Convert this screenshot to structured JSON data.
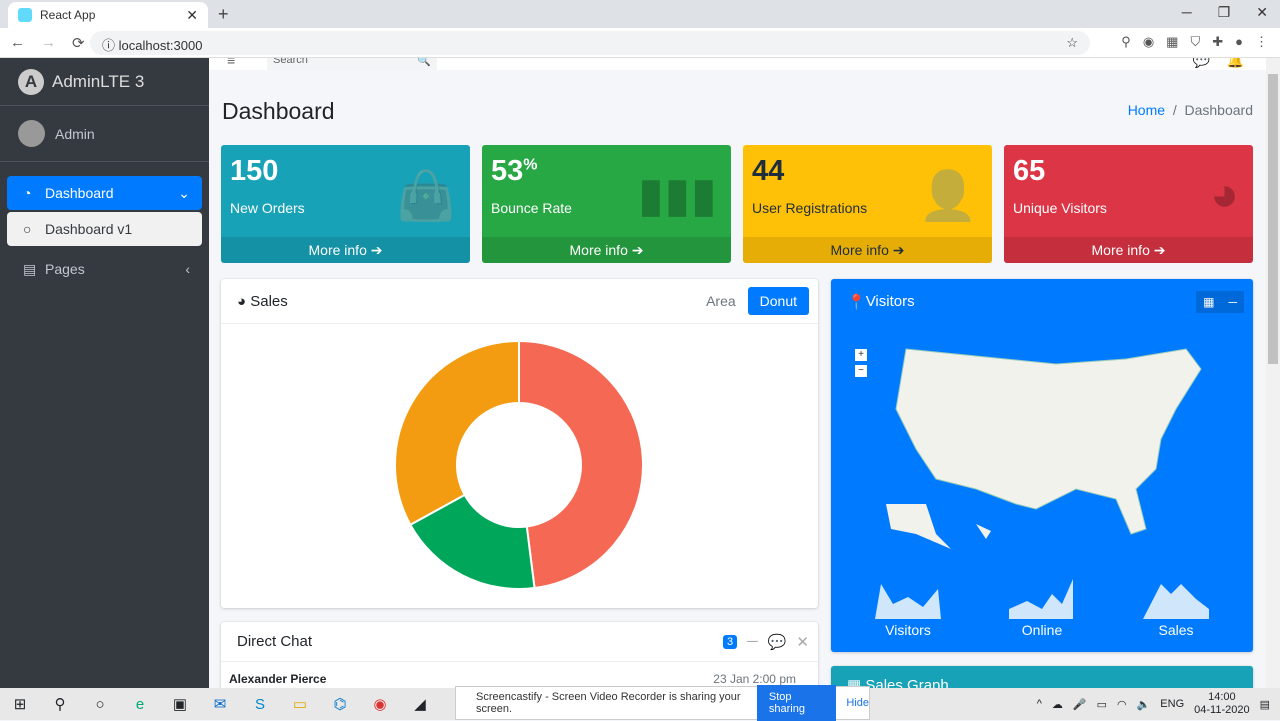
{
  "browser": {
    "tab_title": "React App",
    "url": "localhost:3000"
  },
  "sidebar": {
    "brand": "AdminLTE 3",
    "user": "Admin",
    "items": [
      {
        "label": "Dashboard"
      },
      {
        "label": "Dashboard v1"
      },
      {
        "label": "Pages"
      }
    ]
  },
  "topnav": {
    "search_placeholder": "Search"
  },
  "page": {
    "title": "Dashboard",
    "breadcrumb": [
      "Home",
      "Dashboard"
    ]
  },
  "boxes": [
    {
      "value": "150",
      "label": "New Orders",
      "more": "More info",
      "color": "#17a2b8"
    },
    {
      "value": "53",
      "suffix": "%",
      "label": "Bounce Rate",
      "more": "More info",
      "color": "#28a745"
    },
    {
      "value": "44",
      "label": "User Registrations",
      "more": "More info",
      "color": "#ffc107"
    },
    {
      "value": "65",
      "label": "Unique Visitors",
      "more": "More info",
      "color": "#dc3545"
    }
  ],
  "sales": {
    "title": "Sales",
    "tabs": [
      "Area",
      "Donut"
    ],
    "active_tab": "Donut",
    "donut_percent": [
      48,
      19,
      33
    ],
    "colors": [
      "#f56954",
      "#00a65a",
      "#f39c12"
    ]
  },
  "visitors": {
    "title": "Visitors",
    "sparklines": [
      "Visitors",
      "Online",
      "Sales"
    ]
  },
  "chat": {
    "title": "Direct Chat",
    "badge": "3",
    "message": {
      "name": "Alexander Pierce",
      "time": "23 Jan 2:00 pm"
    }
  },
  "sales_graph": {
    "title": "Sales Graph"
  },
  "screenshare": {
    "text": "Screencastify - Screen Video Recorder is sharing your screen.",
    "stop": "Stop sharing",
    "hide": "Hide"
  },
  "taskbar": {
    "lang": "ENG",
    "time": "14:00",
    "date": "04-11-2020"
  }
}
